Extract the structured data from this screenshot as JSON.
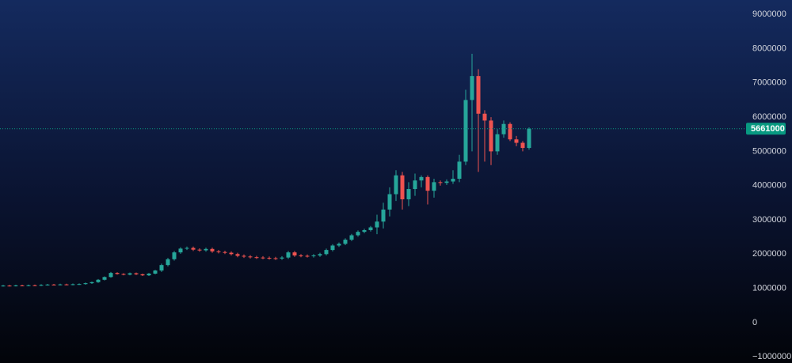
{
  "chart_data": {
    "type": "candlestick",
    "open": [
      1070000,
      1080000,
      1075000,
      1085000,
      1080000,
      1090000,
      1085000,
      1100000,
      1110000,
      1105000,
      1115000,
      1110000,
      1120000,
      1125000,
      1150000,
      1180000,
      1250000,
      1330000,
      1450000,
      1420000,
      1400000,
      1440000,
      1410000,
      1380000,
      1430000,
      1520000,
      1680000,
      1850000,
      2050000,
      2160000,
      2180000,
      2130000,
      2110000,
      2150000,
      2080000,
      2060000,
      2040000,
      2000000,
      1950000,
      1930000,
      1910000,
      1900000,
      1890000,
      1880000,
      1870000,
      1900000,
      2050000,
      1960000,
      1950000,
      1940000,
      1960000,
      2000000,
      2120000,
      2250000,
      2300000,
      2420000,
      2550000,
      2650000,
      2700000,
      2780000,
      2950000,
      3300000,
      3750000,
      4300000,
      3600000,
      3900000,
      4150000,
      4250000,
      3850000,
      4100000,
      4080000,
      4120000,
      4200000,
      4700000,
      6500000,
      7200000,
      6100000,
      5900000,
      5000000,
      5500000,
      5800000,
      5350000,
      5250000,
      5100000
    ],
    "high": [
      1100000,
      1100000,
      1105000,
      1105000,
      1110000,
      1110000,
      1120000,
      1130000,
      1130000,
      1135000,
      1135000,
      1140000,
      1145000,
      1170000,
      1200000,
      1270000,
      1350000,
      1480000,
      1470000,
      1440000,
      1460000,
      1460000,
      1430000,
      1450000,
      1540000,
      1720000,
      1890000,
      2090000,
      2200000,
      2220000,
      2220000,
      2170000,
      2190000,
      2190000,
      2120000,
      2100000,
      2080000,
      2040000,
      1990000,
      1970000,
      1950000,
      1940000,
      1930000,
      1920000,
      1940000,
      2090000,
      2090000,
      2000000,
      1990000,
      2000000,
      2040000,
      2160000,
      2290000,
      2340000,
      2460000,
      2590000,
      2690000,
      2740000,
      2820000,
      3150000,
      3500000,
      3950000,
      4450000,
      4400000,
      4100000,
      4350000,
      4300000,
      4300000,
      4200000,
      4150000,
      4180000,
      4450000,
      4900000,
      6800000,
      7850000,
      7400000,
      6200000,
      6000000,
      5650000,
      5900000,
      5850000,
      5450000,
      5300000,
      5700000
    ],
    "low": [
      1050000,
      1055000,
      1055000,
      1060000,
      1060000,
      1065000,
      1065000,
      1080000,
      1085000,
      1085000,
      1090000,
      1090000,
      1100000,
      1105000,
      1130000,
      1160000,
      1230000,
      1310000,
      1400000,
      1380000,
      1380000,
      1390000,
      1360000,
      1360000,
      1410000,
      1480000,
      1640000,
      1810000,
      2010000,
      2120000,
      2090000,
      2070000,
      2070000,
      2040000,
      2020000,
      2000000,
      1960000,
      1910000,
      1890000,
      1870000,
      1860000,
      1850000,
      1840000,
      1830000,
      1830000,
      1860000,
      1920000,
      1910000,
      1900000,
      1900000,
      1920000,
      1960000,
      2080000,
      2210000,
      2260000,
      2380000,
      2510000,
      2610000,
      2660000,
      2580000,
      2750000,
      3100000,
      3550000,
      3300000,
      3400000,
      3700000,
      3950000,
      3450000,
      3650000,
      4000000,
      4020000,
      4050000,
      4100000,
      4600000,
      5000000,
      4400000,
      4700000,
      4600000,
      4900000,
      5400000,
      5300000,
      5150000,
      5000000,
      5050000
    ],
    "close": [
      1080000,
      1075000,
      1085000,
      1080000,
      1090000,
      1085000,
      1100000,
      1110000,
      1105000,
      1115000,
      1110000,
      1120000,
      1125000,
      1150000,
      1180000,
      1250000,
      1330000,
      1450000,
      1420000,
      1400000,
      1440000,
      1410000,
      1380000,
      1430000,
      1520000,
      1680000,
      1850000,
      2050000,
      2160000,
      2180000,
      2130000,
      2110000,
      2150000,
      2080000,
      2060000,
      2040000,
      2000000,
      1950000,
      1930000,
      1910000,
      1900000,
      1890000,
      1880000,
      1870000,
      1900000,
      2050000,
      1960000,
      1950000,
      1940000,
      1960000,
      2000000,
      2120000,
      2250000,
      2300000,
      2420000,
      2550000,
      2650000,
      2700000,
      2780000,
      2950000,
      3300000,
      3750000,
      4300000,
      3600000,
      3900000,
      4150000,
      4250000,
      3850000,
      4100000,
      4080000,
      4120000,
      4200000,
      4700000,
      6500000,
      7200000,
      6100000,
      5900000,
      5000000,
      5500000,
      5800000,
      5350000,
      5250000,
      5100000,
      5661000
    ],
    "up_color": "#26a69a",
    "down_color": "#ef5350",
    "ylim": [
      -1180000,
      9420000
    ],
    "yticks": [
      {
        "value": -1000000,
        "label": "−1000000"
      },
      0,
      1000000,
      2000000,
      3000000,
      4000000,
      5000000,
      6000000,
      7000000,
      8000000,
      9000000
    ],
    "last_price": 5661000,
    "last_price_color": "#089981"
  }
}
